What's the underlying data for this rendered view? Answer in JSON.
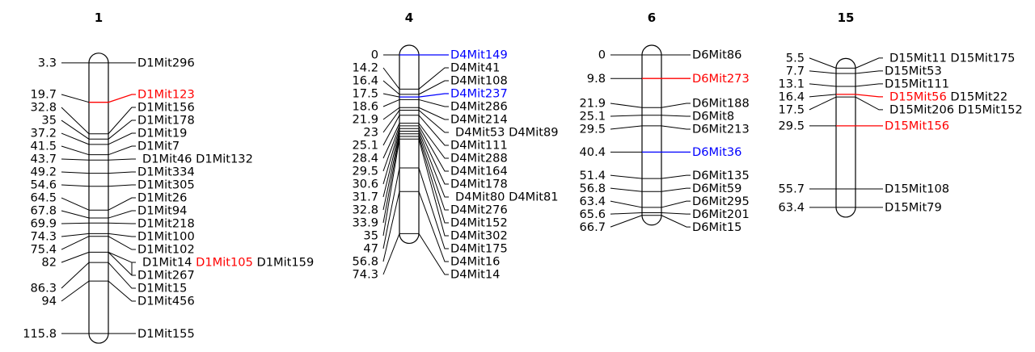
{
  "figure": {
    "type": "genetic_linkage_map",
    "background": "#ffffff"
  },
  "palette": {
    "black": "#000000",
    "red": "#ff0000",
    "blue": "#0000ff"
  },
  "chart_data": {
    "type": "linkage_map",
    "position_unit": "cM",
    "chromosomes": [
      {
        "name": "1",
        "loci": [
          {
            "pos": "3.3",
            "rows": [
              [
                {
                  "t": "D1Mit296"
                }
              ]
            ]
          },
          {
            "pos": "19.7",
            "rows": [
              [
                {
                  "t": "D1Mit123",
                  "c": "red"
                }
              ]
            ]
          },
          {
            "pos": "32.8",
            "rows": [
              [
                {
                  "t": "D1Mit156"
                }
              ]
            ]
          },
          {
            "pos": "35",
            "rows": [
              [
                {
                  "t": "D1Mit178"
                }
              ]
            ]
          },
          {
            "pos": "37.2",
            "rows": [
              [
                {
                  "t": "D1Mit19"
                }
              ]
            ]
          },
          {
            "pos": "41.5",
            "rows": [
              [
                {
                  "t": "D1Mit7"
                }
              ]
            ]
          },
          {
            "pos": "43.7",
            "rows": [
              [
                {
                  "t": "D1Mit46"
                },
                {
                  "t": "D1Mit132"
                }
              ]
            ]
          },
          {
            "pos": "49.2",
            "rows": [
              [
                {
                  "t": "D1Mit334"
                }
              ]
            ]
          },
          {
            "pos": "54.6",
            "rows": [
              [
                {
                  "t": "D1Mit305"
                }
              ]
            ]
          },
          {
            "pos": "64.5",
            "rows": [
              [
                {
                  "t": "D1Mit26"
                }
              ]
            ]
          },
          {
            "pos": "67.8",
            "rows": [
              [
                {
                  "t": "D1Mit94"
                }
              ]
            ]
          },
          {
            "pos": "69.9",
            "rows": [
              [
                {
                  "t": "D1Mit218"
                }
              ]
            ]
          },
          {
            "pos": "74.3",
            "rows": [
              [
                {
                  "t": "D1Mit100"
                }
              ]
            ]
          },
          {
            "pos": "75.4",
            "rows": [
              [
                {
                  "t": "D1Mit102"
                }
              ]
            ]
          },
          {
            "pos": "82",
            "rows": [
              [
                {
                  "t": "D1Mit14"
                },
                {
                  "t": "D1Mit105",
                  "c": "red"
                },
                {
                  "t": "D1Mit159"
                }
              ],
              [
                {
                  "t": "D1Mit267"
                }
              ]
            ]
          },
          {
            "pos": "86.3",
            "rows": [
              [
                {
                  "t": "D1Mit15"
                }
              ]
            ]
          },
          {
            "pos": "94",
            "rows": [
              [
                {
                  "t": "D1Mit456"
                }
              ]
            ]
          },
          {
            "pos": "115.8",
            "rows": [
              [
                {
                  "t": "D1Mit155"
                }
              ]
            ]
          }
        ]
      },
      {
        "name": "4",
        "loci": [
          {
            "pos": "0",
            "rows": [
              [
                {
                  "t": "D4Mit149",
                  "c": "blue"
                }
              ]
            ]
          },
          {
            "pos": "14.2",
            "rows": [
              [
                {
                  "t": "D4Mit41"
                }
              ]
            ]
          },
          {
            "pos": "16.4",
            "rows": [
              [
                {
                  "t": "D4Mit108"
                }
              ]
            ]
          },
          {
            "pos": "17.5",
            "rows": [
              [
                {
                  "t": "D4Mit237",
                  "c": "blue"
                }
              ]
            ]
          },
          {
            "pos": "18.6",
            "rows": [
              [
                {
                  "t": "D4Mit286"
                }
              ]
            ]
          },
          {
            "pos": "21.9",
            "rows": [
              [
                {
                  "t": "D4Mit214"
                }
              ]
            ]
          },
          {
            "pos": "23",
            "rows": [
              [
                {
                  "t": "D4Mit53"
                },
                {
                  "t": "D4Mit89"
                }
              ]
            ]
          },
          {
            "pos": "25.1",
            "rows": [
              [
                {
                  "t": "D4Mit111"
                }
              ]
            ]
          },
          {
            "pos": "28.4",
            "rows": [
              [
                {
                  "t": "D4Mit288"
                }
              ]
            ]
          },
          {
            "pos": "29.5",
            "rows": [
              [
                {
                  "t": "D4Mit164"
                }
              ]
            ]
          },
          {
            "pos": "30.6",
            "rows": [
              [
                {
                  "t": "D4Mit178"
                }
              ]
            ]
          },
          {
            "pos": "31.7",
            "rows": [
              [
                {
                  "t": "D4Mit80"
                },
                {
                  "t": "D4Mit81"
                }
              ]
            ]
          },
          {
            "pos": "32.8",
            "rows": [
              [
                {
                  "t": "D4Mit276"
                }
              ]
            ]
          },
          {
            "pos": "33.9",
            "rows": [
              [
                {
                  "t": "D4Mit152"
                }
              ]
            ]
          },
          {
            "pos": "35",
            "rows": [
              [
                {
                  "t": "D4Mit302"
                }
              ]
            ]
          },
          {
            "pos": "47",
            "rows": [
              [
                {
                  "t": "D4Mit175"
                }
              ]
            ]
          },
          {
            "pos": "56.8",
            "rows": [
              [
                {
                  "t": "D4Mit16"
                }
              ]
            ]
          },
          {
            "pos": "74.3",
            "rows": [
              [
                {
                  "t": "D4Mit14"
                }
              ]
            ]
          }
        ]
      },
      {
        "name": "6",
        "loci": [
          {
            "pos": "0",
            "rows": [
              [
                {
                  "t": "D6Mit86"
                }
              ]
            ]
          },
          {
            "pos": "9.8",
            "rows": [
              [
                {
                  "t": "D6Mit273",
                  "c": "red"
                }
              ]
            ]
          },
          {
            "pos": "21.9",
            "rows": [
              [
                {
                  "t": "D6Mit188"
                }
              ]
            ]
          },
          {
            "pos": "25.1",
            "rows": [
              [
                {
                  "t": "D6Mit8"
                }
              ]
            ]
          },
          {
            "pos": "29.5",
            "rows": [
              [
                {
                  "t": "D6Mit213"
                }
              ]
            ]
          },
          {
            "pos": "40.4",
            "rows": [
              [
                {
                  "t": "D6Mit36",
                  "c": "blue"
                }
              ]
            ]
          },
          {
            "pos": "51.4",
            "rows": [
              [
                {
                  "t": "D6Mit135"
                }
              ]
            ]
          },
          {
            "pos": "56.8",
            "rows": [
              [
                {
                  "t": "D6Mit59"
                }
              ]
            ]
          },
          {
            "pos": "63.4",
            "rows": [
              [
                {
                  "t": "D6Mit295"
                }
              ]
            ]
          },
          {
            "pos": "65.6",
            "rows": [
              [
                {
                  "t": "D6Mit201"
                }
              ]
            ]
          },
          {
            "pos": "66.7",
            "rows": [
              [
                {
                  "t": "D6Mit15"
                }
              ]
            ]
          }
        ]
      },
      {
        "name": "15",
        "loci": [
          {
            "pos": "5.5",
            "rows": [
              [
                {
                  "t": "D15Mit11"
                },
                {
                  "t": "D15Mit175"
                }
              ]
            ]
          },
          {
            "pos": "7.7",
            "rows": [
              [
                {
                  "t": "D15Mit53"
                }
              ]
            ]
          },
          {
            "pos": "13.1",
            "rows": [
              [
                {
                  "t": "D15Mit111"
                }
              ]
            ]
          },
          {
            "pos": "16.4",
            "rows": [
              [
                {
                  "t": "D15Mit56",
                  "c": "red"
                },
                {
                  "t": "D15Mit22"
                }
              ]
            ]
          },
          {
            "pos": "17.5",
            "rows": [
              [
                {
                  "t": "D15Mit206"
                },
                {
                  "t": "D15Mit152"
                }
              ]
            ]
          },
          {
            "pos": "29.5",
            "rows": [
              [
                {
                  "t": "D15Mit156",
                  "c": "red"
                }
              ]
            ]
          },
          {
            "pos": "55.7",
            "rows": [
              [
                {
                  "t": "D15Mit108"
                }
              ]
            ]
          },
          {
            "pos": "63.4",
            "rows": [
              [
                {
                  "t": "D15Mit79"
                }
              ]
            ]
          }
        ]
      }
    ]
  }
}
